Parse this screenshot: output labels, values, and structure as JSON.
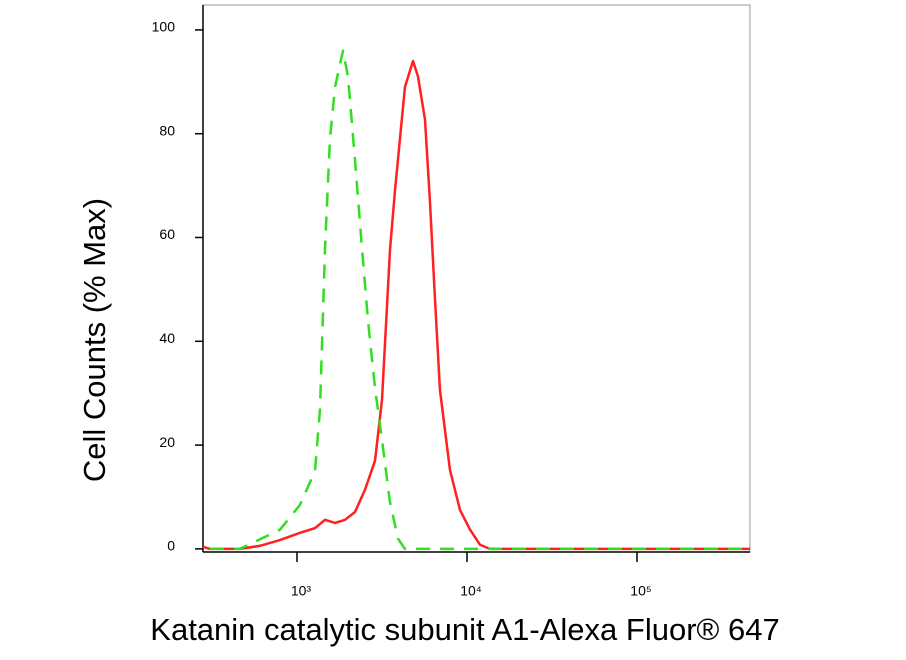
{
  "chart_data": {
    "type": "line",
    "xlabel": "Katanin catalytic subunit A1-Alexa Fluor® 647",
    "ylabel": "Cell Counts (% Max)",
    "xscale": "log",
    "xlim": [
      280,
      462000
    ],
    "ylim": [
      -0.6,
      104.8
    ],
    "xticks": [
      {
        "value": 1000,
        "label": "10³"
      },
      {
        "value": 10000,
        "label": "10⁴"
      },
      {
        "value": 100000,
        "label": "10⁵"
      }
    ],
    "yticks": [
      0,
      20,
      40,
      60,
      80,
      100
    ],
    "series": [
      {
        "color": "#ff2020",
        "linestyle": "solid",
        "x": [
          280,
          308,
          462,
          606,
          794,
          1042,
          1276,
          1462,
          1674,
          1916,
          2193,
          2512,
          2877,
          3162,
          3524,
          3770,
          4315,
          4813,
          5152,
          5662,
          6053,
          6486,
          6934,
          7943,
          9095,
          10423,
          11917,
          13646,
          60534,
          462000
        ],
        "values": [
          0.4,
          0,
          0,
          0.6,
          1.7,
          3.1,
          4,
          5.6,
          5,
          5.6,
          7.1,
          11.4,
          17,
          28.7,
          57.6,
          69,
          89,
          94,
          91,
          82.7,
          67,
          48,
          30.6,
          15.2,
          7.5,
          3.7,
          0.8,
          0,
          0,
          0
        ]
      },
      {
        "color": "#33dd22",
        "linestyle": "dashed",
        "x": [
          308,
          462,
          794,
          1042,
          1276,
          1366,
          1462,
          1563,
          1674,
          1866,
          1995,
          2193,
          2411,
          2616,
          2877,
          3162,
          3524,
          3926,
          4315,
          7943,
          15631,
          60534,
          462000
        ],
        "values": [
          0,
          0,
          3.7,
          8.5,
          15,
          27,
          58,
          79,
          89,
          96,
          91,
          75,
          58,
          44,
          31,
          21,
          9,
          2,
          0,
          0,
          0,
          0,
          0
        ]
      }
    ]
  }
}
